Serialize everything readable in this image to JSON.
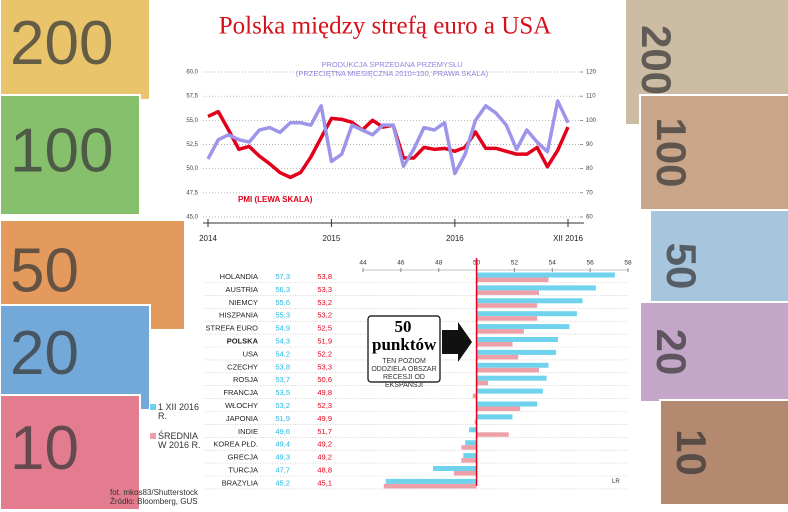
{
  "title": "Polska między strefą euro a USA",
  "banknotes_left": [
    "200",
    "100",
    "50",
    "20",
    "10"
  ],
  "banknotes_right": [
    "200",
    "100",
    "50",
    "20",
    "10"
  ],
  "credit": "fot. mkos83/Shutterstock",
  "source": "Źródło: Bloomberg, GUS",
  "signature": "LR",
  "chart_data": [
    {
      "type": "line",
      "annotations": [
        "PRODUKCJA SPRZEDANA PRZEMYSŁU",
        "(PRZECIĘTNA MIESIĘCZNA 2010=100, PRAWA SKALA)",
        "PMI (LEWA SKALA)"
      ],
      "xlim": [
        0,
        35
      ],
      "xticks": [
        {
          "value": 0,
          "label": "2014"
        },
        {
          "value": 12,
          "label": "2015"
        },
        {
          "value": 24,
          "label": "2016"
        },
        {
          "value": 35,
          "label": "XII 2016"
        }
      ],
      "ylim": [
        45,
        60
      ],
      "yticks": [
        {
          "value": 45,
          "label": "45,0"
        },
        {
          "value": 47.5,
          "label": "47,5"
        },
        {
          "value": 50,
          "label": "50,0"
        },
        {
          "value": 52.5,
          "label": "52,5"
        },
        {
          "value": 55,
          "label": "55,0"
        },
        {
          "value": 57.5,
          "label": "57,5"
        },
        {
          "value": 60,
          "label": "60,0"
        }
      ],
      "y2lim": [
        60,
        120
      ],
      "y2ticks": [
        60,
        70,
        80,
        90,
        100,
        110,
        120
      ],
      "grid": true,
      "series": [
        {
          "name": "PMI",
          "color": "#e3001b",
          "values": [
            55.4,
            55.9,
            54.0,
            52.0,
            52.3,
            51.3,
            50.5,
            49.6,
            49.1,
            49.6,
            51.2,
            53.2,
            55.2,
            55.1,
            54.8,
            54.0,
            55.0,
            54.3,
            54.5,
            51.1,
            51.1,
            52.2,
            52.0,
            52.1,
            51.8,
            52.2,
            53.8,
            52.1,
            52.1,
            51.8,
            51.5,
            51.5,
            52.2,
            50.2,
            51.9,
            54.3
          ]
        },
        {
          "name": "PRODUKCJA",
          "color": "#9c95ea",
          "axis": "y2",
          "values": [
            84,
            92,
            94,
            92,
            91,
            96,
            97,
            95,
            99,
            99,
            98,
            106,
            83,
            86,
            98,
            96,
            94,
            98,
            98,
            81,
            88,
            97,
            96,
            99,
            78,
            86,
            100,
            106,
            103,
            98,
            88,
            96,
            91,
            87,
            108,
            99
          ]
        }
      ]
    },
    {
      "type": "hbar",
      "categories": [
        "HOLANDIA",
        "AUSTRIA",
        "NIEMCY",
        "HISZPANIA",
        "STREFA EURO",
        "POLSKA",
        "USA",
        "CZECHY",
        "ROSJA",
        "FRANCJA",
        "WŁOCHY",
        "JAPONIA",
        "INDIE",
        "KOREA PŁD.",
        "GRECJA",
        "TURCJA",
        "BRAZYLIA"
      ],
      "xlim": [
        44,
        58
      ],
      "xticks": [
        44,
        46,
        48,
        50,
        52,
        54,
        56,
        58
      ],
      "reference_line": 50,
      "callout": "50 punktów",
      "callout_text": "TEN POZIOM ODDZIELA OBSZAR RECESJI OD EKSPANSJI",
      "series": [
        {
          "name": "1 XII 2016 R.",
          "color": "#6fd3ee",
          "values": [
            57.3,
            56.3,
            55.6,
            55.3,
            54.9,
            54.3,
            54.2,
            53.8,
            53.7,
            53.5,
            53.2,
            51.9,
            49.6,
            49.4,
            49.3,
            47.7,
            45.2
          ],
          "value_labels": [
            "57,3",
            "56,3",
            "55,6",
            "55,3",
            "54,9",
            "54,3",
            "54,2",
            "53,8",
            "53,7",
            "53,5",
            "53,2",
            "51,9",
            "49,6",
            "49,4",
            "49,3",
            "47,7",
            "45,2"
          ]
        },
        {
          "name": "ŚREDNIA W 2016 R.",
          "color": "#eea0a8",
          "values": [
            53.8,
            53.3,
            53.2,
            53.2,
            52.5,
            51.9,
            52.2,
            53.3,
            50.6,
            49.8,
            52.3,
            49.9,
            51.7,
            49.2,
            49.2,
            48.8,
            45.1
          ],
          "value_labels": [
            "53,8",
            "53,3",
            "53,2",
            "53,2",
            "52,5",
            "51,9",
            "52,2",
            "53,3",
            "50,6",
            "49,8",
            "52,3",
            "49,9",
            "51,7",
            "49,2",
            "49,2",
            "48,8",
            "45,1"
          ]
        }
      ]
    }
  ]
}
